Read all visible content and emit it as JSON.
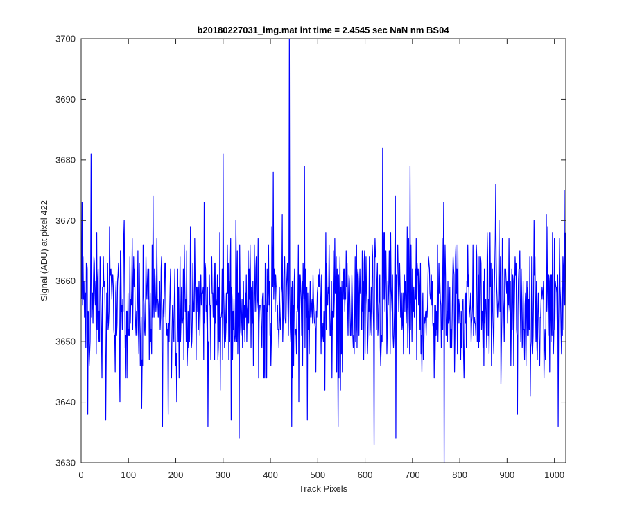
{
  "chart_data": {
    "type": "line",
    "title": "b20180227031_img.mat int time = 2.4545 sec  NaN nm BS04",
    "xlabel": "Track Pixels",
    "ylabel": "Signal (ADU) at pixel 422",
    "xlim": [
      0,
      1024
    ],
    "ylim": [
      3630,
      3700
    ],
    "xticks": [
      0,
      100,
      200,
      300,
      400,
      500,
      600,
      700,
      800,
      900,
      1000
    ],
    "yticks": [
      3630,
      3640,
      3650,
      3660,
      3670,
      3680,
      3690,
      3700
    ],
    "grid": false,
    "series": [
      {
        "color": "#0000ff",
        "x_start": 1,
        "x_step": 1,
        "baseline": 3656,
        "noise_amplitude": 6,
        "spikes": [
          {
            "x": 2,
            "y": 3673
          },
          {
            "x": 14,
            "y": 3638
          },
          {
            "x": 21,
            "y": 3681
          },
          {
            "x": 52,
            "y": 3637
          },
          {
            "x": 128,
            "y": 3639
          },
          {
            "x": 172,
            "y": 3636
          },
          {
            "x": 184,
            "y": 3638
          },
          {
            "x": 202,
            "y": 3640
          },
          {
            "x": 268,
            "y": 3636
          },
          {
            "x": 300,
            "y": 3681
          },
          {
            "x": 334,
            "y": 3634
          },
          {
            "x": 406,
            "y": 3678
          },
          {
            "x": 440,
            "y": 3700
          },
          {
            "x": 445,
            "y": 3636
          },
          {
            "x": 472,
            "y": 3679
          },
          {
            "x": 543,
            "y": 3636
          },
          {
            "x": 619,
            "y": 3633
          },
          {
            "x": 637,
            "y": 3682
          },
          {
            "x": 665,
            "y": 3634
          },
          {
            "x": 695,
            "y": 3679
          },
          {
            "x": 767,
            "y": 3630
          },
          {
            "x": 876,
            "y": 3676
          },
          {
            "x": 922,
            "y": 3638
          },
          {
            "x": 1021,
            "y": 3675
          }
        ]
      }
    ]
  }
}
